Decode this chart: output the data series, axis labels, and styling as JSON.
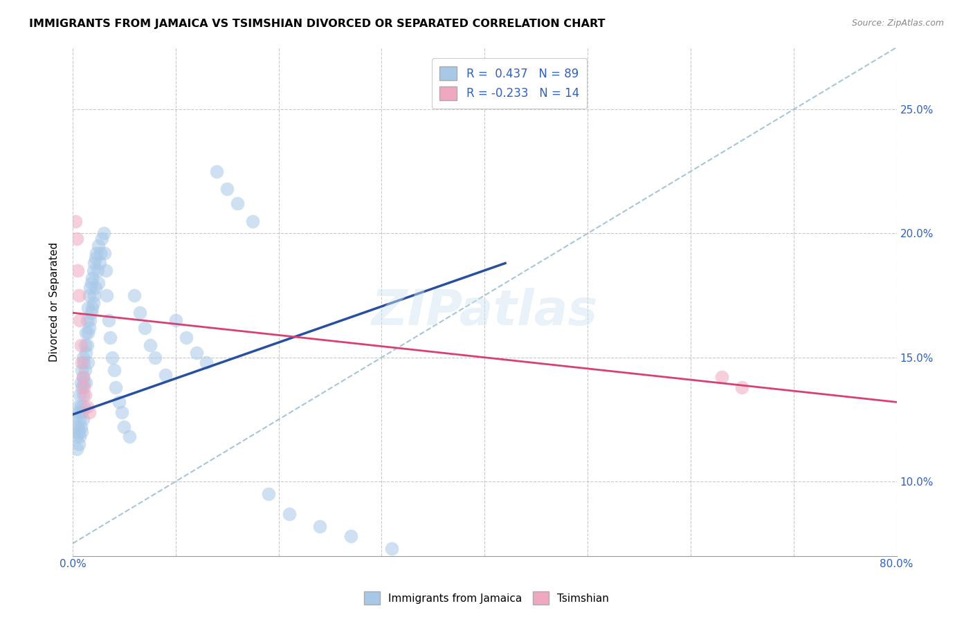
{
  "title": "IMMIGRANTS FROM JAMAICA VS TSIMSHIAN DIVORCED OR SEPARATED CORRELATION CHART",
  "source": "Source: ZipAtlas.com",
  "ylabel": "Divorced or Separated",
  "xlim": [
    0.0,
    0.8
  ],
  "ylim": [
    0.07,
    0.275
  ],
  "blue_color": "#a8c8e8",
  "pink_color": "#f0a8c0",
  "blue_line_color": "#2850a0",
  "pink_line_color": "#d84070",
  "dashed_line_color": "#90b8cc",
  "watermark": "ZIPatlas",
  "blue_scatter_x": [
    0.002,
    0.003,
    0.004,
    0.004,
    0.005,
    0.005,
    0.006,
    0.006,
    0.006,
    0.007,
    0.007,
    0.007,
    0.008,
    0.008,
    0.008,
    0.009,
    0.009,
    0.009,
    0.009,
    0.01,
    0.01,
    0.01,
    0.01,
    0.011,
    0.011,
    0.011,
    0.012,
    0.012,
    0.013,
    0.013,
    0.013,
    0.014,
    0.014,
    0.015,
    0.015,
    0.015,
    0.016,
    0.016,
    0.017,
    0.017,
    0.018,
    0.018,
    0.019,
    0.019,
    0.02,
    0.02,
    0.021,
    0.021,
    0.022,
    0.022,
    0.023,
    0.024,
    0.025,
    0.025,
    0.026,
    0.027,
    0.028,
    0.03,
    0.031,
    0.032,
    0.033,
    0.035,
    0.036,
    0.038,
    0.04,
    0.042,
    0.045,
    0.048,
    0.05,
    0.055,
    0.06,
    0.065,
    0.07,
    0.075,
    0.08,
    0.09,
    0.1,
    0.11,
    0.12,
    0.13,
    0.14,
    0.15,
    0.16,
    0.175,
    0.19,
    0.21,
    0.24,
    0.27,
    0.31
  ],
  "blue_scatter_y": [
    0.125,
    0.12,
    0.118,
    0.113,
    0.13,
    0.122,
    0.128,
    0.12,
    0.115,
    0.135,
    0.125,
    0.118,
    0.14,
    0.13,
    0.122,
    0.145,
    0.138,
    0.128,
    0.12,
    0.15,
    0.142,
    0.135,
    0.125,
    0.148,
    0.14,
    0.13,
    0.155,
    0.145,
    0.16,
    0.152,
    0.14,
    0.165,
    0.155,
    0.17,
    0.16,
    0.148,
    0.175,
    0.162,
    0.178,
    0.165,
    0.18,
    0.168,
    0.182,
    0.17,
    0.185,
    0.172,
    0.188,
    0.175,
    0.19,
    0.178,
    0.192,
    0.185,
    0.195,
    0.18,
    0.188,
    0.192,
    0.198,
    0.2,
    0.192,
    0.185,
    0.175,
    0.165,
    0.158,
    0.15,
    0.145,
    0.138,
    0.132,
    0.128,
    0.122,
    0.118,
    0.175,
    0.168,
    0.162,
    0.155,
    0.15,
    0.143,
    0.165,
    0.158,
    0.152,
    0.148,
    0.225,
    0.218,
    0.212,
    0.205,
    0.095,
    0.087,
    0.082,
    0.078,
    0.073
  ],
  "pink_scatter_x": [
    0.003,
    0.004,
    0.005,
    0.006,
    0.007,
    0.008,
    0.009,
    0.01,
    0.011,
    0.012,
    0.014,
    0.016,
    0.63,
    0.65
  ],
  "pink_scatter_y": [
    0.205,
    0.198,
    0.185,
    0.175,
    0.165,
    0.155,
    0.148,
    0.142,
    0.138,
    0.135,
    0.13,
    0.128,
    0.142,
    0.138
  ],
  "blue_line_x": [
    0.0,
    0.42
  ],
  "blue_line_y": [
    0.127,
    0.188
  ],
  "pink_line_x": [
    0.0,
    0.8
  ],
  "pink_line_y": [
    0.168,
    0.132
  ],
  "dashed_line_x": [
    0.0,
    0.8
  ],
  "dashed_line_y": [
    0.075,
    0.275
  ],
  "ytick_vals": [
    0.1,
    0.15,
    0.2,
    0.25
  ],
  "ytick_labels": [
    "10.0%",
    "15.0%",
    "20.0%",
    "25.0%"
  ],
  "xtick_vals": [
    0.0,
    0.1,
    0.2,
    0.3,
    0.4,
    0.5,
    0.6,
    0.7,
    0.8
  ],
  "legend1_label": "R =  0.437   N = 89",
  "legend2_label": "R = -0.233   N = 14",
  "legend_bottom1": "Immigrants from Jamaica",
  "legend_bottom2": "Tsimshian"
}
